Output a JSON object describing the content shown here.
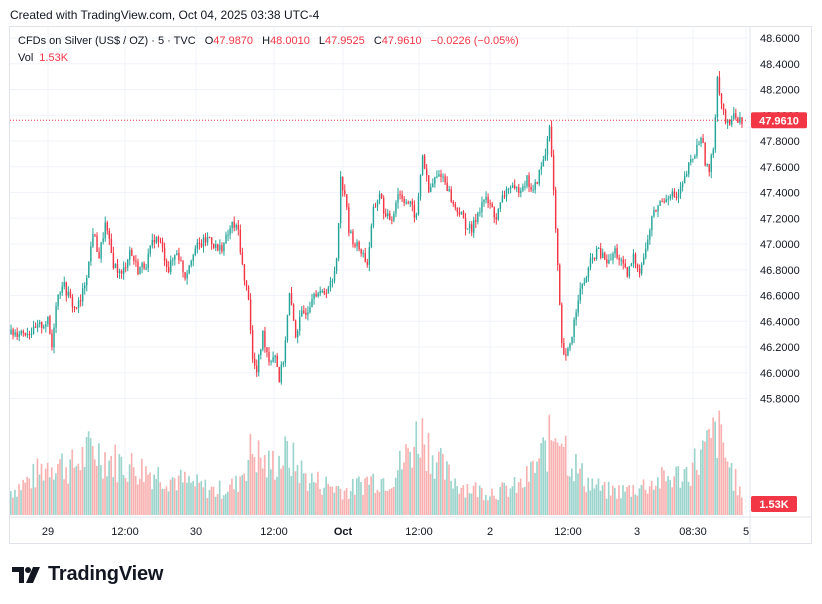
{
  "header": {
    "created_text": "Created with TradingView.com, Oct 04, 2025 03:38 UTC-4"
  },
  "legend": {
    "symbol": "CFDs on Silver (US$ / OZ) · 5 · TVC",
    "open_label": "O",
    "open": "47.9870",
    "high_label": "H",
    "high": "48.0010",
    "low_label": "L",
    "low": "47.9525",
    "close_label": "C",
    "close": "47.9610",
    "change": "−0.0226 (−0.05%)",
    "vol_label": "Vol",
    "vol_value": "1.53K"
  },
  "price_badge": "47.9610",
  "volume_badge": "1.53K",
  "brand": {
    "name": "TradingView"
  },
  "colors": {
    "up": "#26a69a",
    "down": "#f23645",
    "up_vol": "#8fcfc7",
    "down_vol": "#f7a9a7",
    "grid": "#f0f3fa"
  },
  "chart_data": {
    "type": "candlestick",
    "y_ticks": [
      "48.6000",
      "48.4000",
      "48.2000",
      "48.0000",
      "47.8000",
      "47.6000",
      "47.4000",
      "47.2000",
      "47.0000",
      "46.8000",
      "46.6000",
      "46.4000",
      "46.2000",
      "46.0000",
      "45.8000"
    ],
    "ylim": [
      45.63,
      48.7
    ],
    "x_ticks": [
      "29",
      "12:00",
      "30",
      "12:00",
      "Oct",
      "12:00",
      "2",
      "12:00",
      "3",
      "08:30",
      "5"
    ],
    "last_price": 47.961,
    "approx_close_path": [
      [
        0,
        46.3
      ],
      [
        4,
        46.32
      ],
      [
        8,
        46.32
      ],
      [
        11,
        46.32
      ],
      [
        14,
        46.36
      ],
      [
        18,
        46.4
      ],
      [
        20,
        46.2
      ],
      [
        22,
        46.55
      ],
      [
        25,
        46.7
      ],
      [
        28,
        46.6
      ],
      [
        31,
        46.5
      ],
      [
        34,
        46.55
      ],
      [
        38,
        46.85
      ],
      [
        40,
        47.1
      ],
      [
        43,
        46.9
      ],
      [
        46,
        47.15
      ],
      [
        50,
        46.85
      ],
      [
        54,
        46.75
      ],
      [
        58,
        46.95
      ],
      [
        62,
        46.8
      ],
      [
        66,
        46.85
      ],
      [
        70,
        47.05
      ],
      [
        73,
        47.0
      ],
      [
        77,
        46.8
      ],
      [
        81,
        46.95
      ],
      [
        85,
        46.75
      ],
      [
        89,
        46.95
      ],
      [
        93,
        47.0
      ],
      [
        97,
        47.05
      ],
      [
        101,
        46.95
      ],
      [
        104,
        47.0
      ],
      [
        108,
        47.15
      ],
      [
        111,
        47.1
      ],
      [
        114,
        46.7
      ],
      [
        116,
        46.6
      ],
      [
        118,
        46.1
      ],
      [
        120,
        46.0
      ],
      [
        123,
        46.3
      ],
      [
        126,
        46.1
      ],
      [
        129,
        46.15
      ],
      [
        131,
        45.95
      ],
      [
        133,
        46.1
      ],
      [
        136,
        46.6
      ],
      [
        139,
        46.3
      ],
      [
        142,
        46.45
      ],
      [
        145,
        46.5
      ],
      [
        148,
        46.65
      ],
      [
        151,
        46.6
      ],
      [
        154,
        46.65
      ],
      [
        157,
        46.7
      ],
      [
        159,
        46.9
      ],
      [
        161,
        47.5
      ],
      [
        163,
        47.4
      ],
      [
        165,
        47.1
      ],
      [
        168,
        47.0
      ],
      [
        171,
        46.95
      ],
      [
        174,
        46.85
      ],
      [
        177,
        47.25
      ],
      [
        180,
        47.4
      ],
      [
        183,
        47.2
      ],
      [
        186,
        47.2
      ],
      [
        189,
        47.4
      ],
      [
        192,
        47.35
      ],
      [
        195,
        47.3
      ],
      [
        198,
        47.2
      ],
      [
        201,
        47.7
      ],
      [
        204,
        47.4
      ],
      [
        207,
        47.5
      ],
      [
        210,
        47.55
      ],
      [
        213,
        47.45
      ],
      [
        216,
        47.3
      ],
      [
        219,
        47.25
      ],
      [
        222,
        47.15
      ],
      [
        225,
        47.1
      ],
      [
        228,
        47.25
      ],
      [
        231,
        47.35
      ],
      [
        234,
        47.3
      ],
      [
        237,
        47.2
      ],
      [
        240,
        47.35
      ],
      [
        243,
        47.45
      ],
      [
        246,
        47.4
      ],
      [
        249,
        47.45
      ],
      [
        252,
        47.5
      ],
      [
        255,
        47.4
      ],
      [
        258,
        47.55
      ],
      [
        261,
        47.7
      ],
      [
        263,
        47.95
      ],
      [
        265,
        47.4
      ],
      [
        267,
        46.8
      ],
      [
        269,
        46.2
      ],
      [
        271,
        46.1
      ],
      [
        274,
        46.3
      ],
      [
        277,
        46.6
      ],
      [
        280,
        46.7
      ],
      [
        283,
        46.85
      ],
      [
        286,
        46.95
      ],
      [
        289,
        46.9
      ],
      [
        292,
        46.85
      ],
      [
        295,
        46.95
      ],
      [
        298,
        46.85
      ],
      [
        301,
        46.75
      ],
      [
        304,
        46.9
      ],
      [
        307,
        46.8
      ],
      [
        310,
        46.95
      ],
      [
        313,
        47.2
      ],
      [
        316,
        47.3
      ],
      [
        319,
        47.35
      ],
      [
        322,
        47.4
      ],
      [
        325,
        47.35
      ],
      [
        328,
        47.45
      ],
      [
        331,
        47.6
      ],
      [
        334,
        47.7
      ],
      [
        337,
        47.85
      ],
      [
        339,
        47.65
      ],
      [
        341,
        47.55
      ],
      [
        343,
        47.75
      ],
      [
        345,
        48.3
      ],
      [
        347,
        48.1
      ],
      [
        349,
        47.95
      ],
      [
        351,
        47.9
      ],
      [
        353,
        48.05
      ],
      [
        355,
        47.95
      ],
      [
        357,
        47.96
      ]
    ],
    "approx_volume_path": [
      [
        0,
        0.2
      ],
      [
        10,
        0.3
      ],
      [
        20,
        0.45
      ],
      [
        30,
        0.4
      ],
      [
        40,
        0.55
      ],
      [
        50,
        0.45
      ],
      [
        60,
        0.4
      ],
      [
        70,
        0.35
      ],
      [
        80,
        0.3
      ],
      [
        90,
        0.25
      ],
      [
        100,
        0.2
      ],
      [
        110,
        0.25
      ],
      [
        118,
        0.55
      ],
      [
        125,
        0.4
      ],
      [
        135,
        0.5
      ],
      [
        145,
        0.3
      ],
      [
        155,
        0.25
      ],
      [
        165,
        0.2
      ],
      [
        175,
        0.3
      ],
      [
        185,
        0.3
      ],
      [
        192,
        0.45
      ],
      [
        200,
        0.7
      ],
      [
        205,
        0.55
      ],
      [
        212,
        0.35
      ],
      [
        220,
        0.25
      ],
      [
        230,
        0.2
      ],
      [
        240,
        0.2
      ],
      [
        250,
        0.25
      ],
      [
        258,
        0.45
      ],
      [
        263,
        0.6
      ],
      [
        268,
        0.8
      ],
      [
        272,
        0.5
      ],
      [
        280,
        0.3
      ],
      [
        290,
        0.2
      ],
      [
        300,
        0.2
      ],
      [
        310,
        0.25
      ],
      [
        320,
        0.3
      ],
      [
        330,
        0.35
      ],
      [
        340,
        0.55
      ],
      [
        345,
        0.7
      ],
      [
        350,
        0.45
      ],
      [
        357,
        0.15
      ]
    ]
  }
}
